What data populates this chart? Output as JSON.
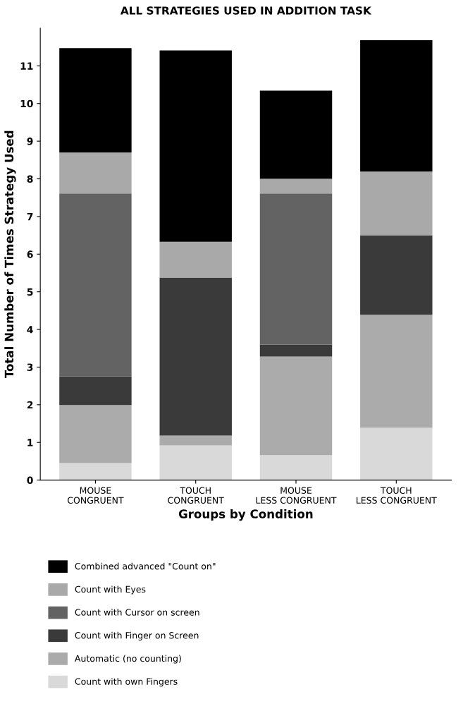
{
  "chart_data": {
    "type": "bar",
    "title": "ALL STRATEGIES USED IN ADDITION TASK",
    "xlabel": "Groups by Condition",
    "ylabel": "Total Number of Times Strategy Used",
    "categories": [
      "MOUSE\nCONGRUENT",
      "TOUCH\nCONGRUENT",
      "MOUSE\nLESS CONGRUENT",
      "TOUCH\nLESS CONGRUENT"
    ],
    "stacked": true,
    "ylim": [
      0,
      12
    ],
    "yticks": [
      0,
      1,
      2,
      3,
      4,
      5,
      6,
      7,
      8,
      9,
      10,
      11
    ],
    "grid": false,
    "legend": "bottom",
    "series": [
      {
        "name": "Count with own Fingers",
        "color": "#d9d9d9",
        "values": [
          0.45,
          0.92,
          0.66,
          1.39
        ]
      },
      {
        "name": "Automatic (no counting)",
        "color": "#ababab",
        "values": [
          1.54,
          0.26,
          2.62,
          3.0
        ]
      },
      {
        "name": "Count with Finger on Screen",
        "color": "#3a3a3a",
        "values": [
          0.76,
          4.2,
          0.32,
          2.11
        ]
      },
      {
        "name": "Count with Cursor on screen",
        "color": "#636363",
        "values": [
          4.86,
          0,
          4.01,
          0
        ]
      },
      {
        "name": "Count with Eyes",
        "color": "#a9a9a9",
        "values": [
          1.09,
          0.95,
          0.39,
          1.69
        ]
      },
      {
        "name": "Combined advanced \"Count on\"",
        "color": "#000000",
        "values": [
          2.77,
          5.08,
          2.34,
          3.49
        ]
      }
    ]
  }
}
